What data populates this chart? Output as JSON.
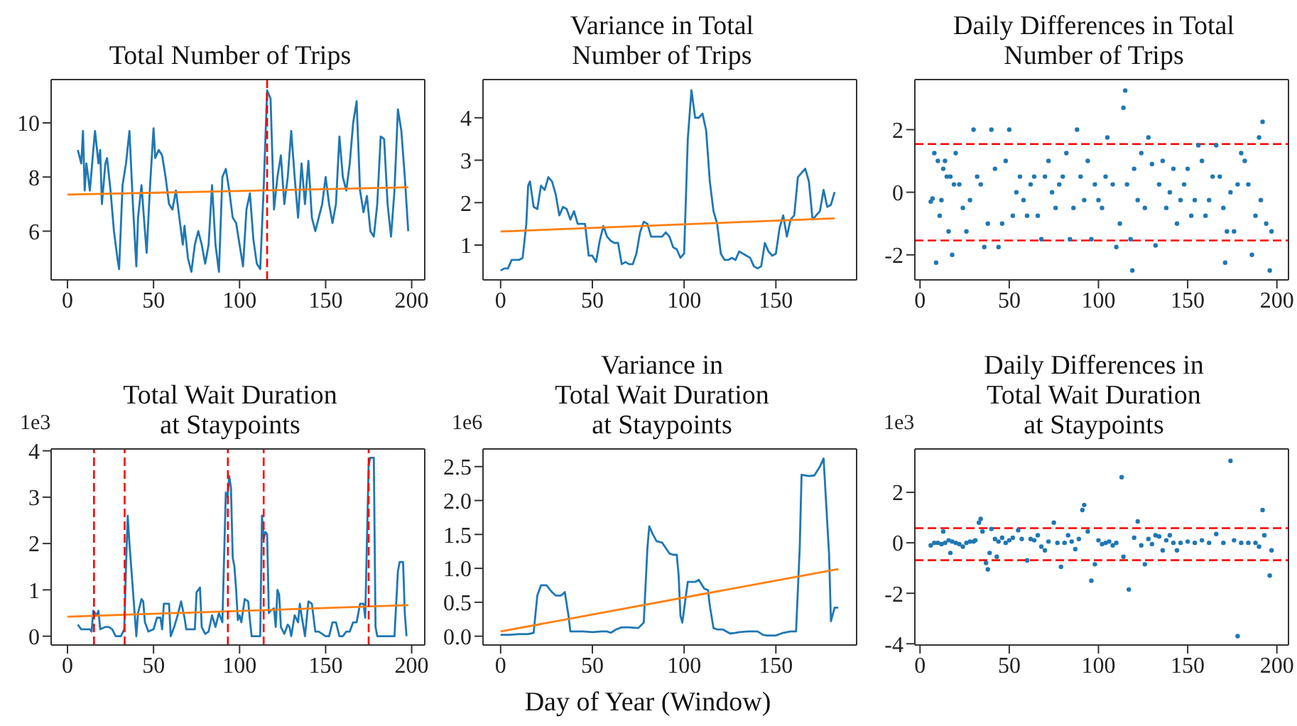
{
  "chart_data": [
    {
      "type": "line",
      "title": "Total Number of Trips",
      "xlim": [
        -9.5,
        207.6
      ],
      "ylim": [
        4.2,
        11.6
      ],
      "xticks": [
        0,
        50,
        100,
        150,
        200
      ],
      "yticks": [
        6,
        8,
        10
      ],
      "series": [
        {
          "color": "#1f77b4",
          "x": [
            6,
            8,
            9,
            10,
            11,
            13,
            15,
            16,
            18,
            19,
            20,
            22,
            23,
            25,
            27,
            29,
            30,
            32,
            34,
            36,
            38,
            40,
            41,
            43,
            45,
            46,
            48,
            50,
            51,
            53,
            55,
            57,
            59,
            61,
            63,
            65,
            67,
            68,
            70,
            72,
            74,
            76,
            78,
            80,
            82,
            84,
            86,
            88,
            90,
            92,
            94,
            96,
            98,
            100,
            102,
            104,
            106,
            108,
            110,
            112,
            114,
            116,
            118,
            120,
            122,
            124,
            126,
            128,
            130,
            132,
            134,
            136,
            138,
            140,
            142,
            144,
            146,
            148,
            150,
            152,
            154,
            156,
            158,
            160,
            162,
            164,
            166,
            168,
            170,
            172,
            174,
            176,
            178,
            180,
            182,
            184,
            186,
            188,
            190,
            192,
            194,
            196,
            198
          ],
          "values": [
            9.0,
            8.5,
            9.7,
            7.5,
            8.5,
            7.5,
            9.0,
            9.7,
            8.5,
            9.0,
            7.0,
            8.5,
            8.7,
            7.5,
            6.0,
            5.0,
            4.6,
            7.7,
            8.5,
            9.7,
            7.0,
            4.7,
            6.5,
            7.7,
            6.0,
            5.2,
            7.7,
            9.8,
            8.7,
            9.0,
            8.8,
            8.0,
            7.0,
            6.8,
            7.5,
            6.5,
            5.5,
            6.2,
            5.0,
            4.5,
            5.5,
            6.0,
            5.5,
            4.8,
            5.5,
            7.7,
            5.5,
            4.5,
            8.0,
            8.3,
            7.5,
            6.5,
            6.3,
            5.5,
            4.7,
            6.8,
            7.4,
            5.7,
            4.8,
            4.6,
            7.6,
            11.2,
            10.9,
            6.8,
            8.0,
            8.8,
            7.0,
            8.0,
            9.7,
            8.0,
            6.5,
            8.5,
            7.0,
            8.6,
            6.5,
            6.0,
            6.5,
            7.0,
            8.0,
            7.0,
            6.3,
            7.0,
            9.5,
            8.0,
            7.5,
            8.5,
            10.0,
            10.8,
            7.5,
            6.7,
            7.3,
            6.0,
            5.8,
            7.0,
            9.5,
            9.4,
            7.0,
            5.8,
            7.5,
            10.5,
            9.7,
            8.0,
            6.0
          ]
        },
        {
          "type": "line",
          "color": "#ff7f0e",
          "x": [
            0,
            198
          ],
          "values": [
            7.35,
            7.62
          ]
        }
      ],
      "ref_lines": [
        {
          "axis": "x",
          "value": 116,
          "color": "#ff0000",
          "line_style": "dashed"
        }
      ]
    },
    {
      "type": "line",
      "title": "Variance in Total\nNumber of Trips",
      "xlim": [
        -9.6,
        194
      ],
      "ylim": [
        0.18,
        4.9
      ],
      "xticks": [
        0,
        50,
        100,
        150
      ],
      "yticks": [
        1,
        2,
        3,
        4
      ],
      "series": [
        {
          "color": "#1f77b4",
          "x": [
            0,
            2,
            4,
            6,
            10,
            12,
            14,
            15,
            16,
            18,
            20,
            22,
            24,
            26,
            28,
            30,
            32,
            34,
            36,
            38,
            40,
            42,
            44,
            46,
            48,
            50,
            52,
            54,
            56,
            58,
            60,
            62,
            64,
            66,
            68,
            70,
            72,
            74,
            76,
            78,
            80,
            82,
            84,
            86,
            88,
            90,
            92,
            94,
            96,
            98,
            100,
            102,
            104,
            106,
            108,
            110,
            112,
            114,
            116,
            118,
            120,
            122,
            124,
            126,
            128,
            130,
            132,
            134,
            136,
            138,
            140,
            142,
            144,
            146,
            148,
            150,
            152,
            154,
            156,
            158,
            160,
            162,
            164,
            166,
            168,
            170,
            172,
            174,
            176,
            178,
            180,
            182
          ],
          "values": [
            0.4,
            0.45,
            0.45,
            0.65,
            0.65,
            0.7,
            1.5,
            2.4,
            2.5,
            1.9,
            1.85,
            2.4,
            2.3,
            2.6,
            2.5,
            2.2,
            1.7,
            1.9,
            1.85,
            1.6,
            1.8,
            1.5,
            1.5,
            1.5,
            0.75,
            0.75,
            0.6,
            1.1,
            1.45,
            1.2,
            1.1,
            1.05,
            1.05,
            0.55,
            0.6,
            0.55,
            0.55,
            0.8,
            1.3,
            1.55,
            1.5,
            1.2,
            1.2,
            1.2,
            1.2,
            1.3,
            1.2,
            0.95,
            0.9,
            0.7,
            0.8,
            3.5,
            4.65,
            4.0,
            4.0,
            4.1,
            3.7,
            2.5,
            1.8,
            1.5,
            0.8,
            0.65,
            0.65,
            0.7,
            0.65,
            0.85,
            0.8,
            0.75,
            0.7,
            0.5,
            0.45,
            0.5,
            1.05,
            0.85,
            0.75,
            0.8,
            1.4,
            1.7,
            1.2,
            1.6,
            1.7,
            2.6,
            2.7,
            2.8,
            2.5,
            1.6,
            1.7,
            1.8,
            2.3,
            1.9,
            1.95,
            2.25
          ]
        },
        {
          "type": "line",
          "color": "#ff7f0e",
          "x": [
            0,
            182
          ],
          "values": [
            1.32,
            1.63
          ]
        }
      ]
    },
    {
      "type": "scatter",
      "title": "Daily Differences in Total\nNumber of Trips",
      "xlim": [
        -2.9,
        206.5
      ],
      "ylim": [
        -2.8,
        3.6
      ],
      "xticks": [
        0,
        50,
        100,
        150,
        200
      ],
      "yticks": [
        -2,
        0,
        2
      ],
      "marker": "circle",
      "series": [
        {
          "color": "#1f77b4",
          "x": [
            6,
            7,
            8,
            9,
            10,
            11,
            12,
            13,
            14,
            15,
            16,
            17,
            18,
            19,
            20,
            22,
            24,
            26,
            28,
            30,
            32,
            34,
            36,
            38,
            40,
            42,
            44,
            46,
            48,
            50,
            52,
            54,
            56,
            58,
            60,
            62,
            64,
            66,
            68,
            70,
            72,
            74,
            76,
            78,
            80,
            82,
            84,
            86,
            88,
            90,
            92,
            94,
            96,
            98,
            100,
            102,
            104,
            105,
            108,
            110,
            112,
            114,
            115,
            116,
            118,
            119,
            120,
            122,
            124,
            126,
            128,
            130,
            132,
            134,
            136,
            138,
            140,
            142,
            144,
            146,
            148,
            150,
            152,
            154,
            156,
            158,
            160,
            162,
            164,
            166,
            168,
            170,
            171,
            172,
            174,
            176,
            178,
            180,
            182,
            184,
            186,
            188,
            190,
            191,
            192,
            194,
            196,
            197
          ],
          "values": [
            -0.3,
            -0.2,
            1.25,
            -2.25,
            1.0,
            -0.75,
            -0.25,
            0.75,
            1.0,
            0.5,
            -1.25,
            0.5,
            -2.0,
            0.25,
            1.25,
            0.25,
            -0.5,
            -1.25,
            -0.25,
            2.0,
            0.5,
            0.25,
            -1.75,
            -1.0,
            2.0,
            0.75,
            -1.75,
            -1.0,
            1.0,
            2.0,
            -0.75,
            0.0,
            0.5,
            -0.25,
            -0.75,
            0.25,
            0.5,
            -0.75,
            -1.5,
            0.5,
            1.0,
            0.0,
            -0.5,
            0.25,
            0.5,
            1.25,
            -1.5,
            -0.5,
            2.0,
            0.5,
            -0.25,
            1.0,
            -1.5,
            0.25,
            -0.25,
            -0.5,
            0.5,
            1.75,
            0.25,
            -1.75,
            -1.0,
            2.7,
            3.25,
            0.25,
            -1.5,
            -2.5,
            0.75,
            -0.25,
            1.25,
            -0.5,
            1.75,
            0.9,
            -1.7,
            0.25,
            1.0,
            -0.5,
            0.0,
            0.75,
            -1.0,
            -0.25,
            0.25,
            0.75,
            -0.75,
            -0.25,
            1.5,
            1.0,
            -0.75,
            -0.25,
            0.5,
            1.5,
            0.5,
            -0.5,
            -2.25,
            -1.25,
            0.0,
            -1.25,
            0.25,
            1.25,
            1.0,
            0.25,
            -2.0,
            -0.75,
            1.75,
            -0.25,
            2.25,
            -1.0,
            -2.5,
            -1.25
          ]
        }
      ],
      "ref_lines": [
        {
          "axis": "y",
          "value": 1.54,
          "color": "#ff0000",
          "line_style": "dashed"
        },
        {
          "axis": "y",
          "value": -1.54,
          "color": "#ff0000",
          "line_style": "dashed"
        }
      ]
    },
    {
      "type": "line",
      "title": "Total Wait Duration\nat Staypoints",
      "annotations": [
        "1e3"
      ],
      "xlim": [
        -9.5,
        207.6
      ],
      "ylim": [
        -0.19,
        4.04
      ],
      "xticks": [
        0,
        50,
        100,
        150,
        200
      ],
      "yticks": [
        0,
        1,
        2,
        3,
        4
      ],
      "series": [
        {
          "color": "#1f77b4",
          "x": [
            6,
            8,
            10,
            13,
            14,
            15,
            17,
            18,
            19,
            22,
            24,
            26,
            28,
            31,
            33,
            34,
            35,
            36,
            37,
            39,
            40,
            41,
            43,
            44,
            45,
            47,
            50,
            52,
            54,
            55,
            56,
            59,
            60,
            62,
            64,
            66,
            68,
            69,
            72,
            74,
            75,
            77,
            78,
            80,
            82,
            84,
            86,
            88,
            90,
            92,
            93,
            94,
            95,
            96,
            97,
            98,
            99,
            100,
            101,
            103,
            105,
            106,
            107,
            110,
            112,
            113,
            114,
            115,
            116,
            117,
            118,
            120,
            121,
            122,
            123,
            124,
            126,
            128,
            129,
            130,
            132,
            134,
            135,
            136,
            138,
            140,
            142,
            144,
            146,
            150,
            152,
            154,
            156,
            158,
            160,
            162,
            164,
            166,
            168,
            170,
            172,
            173,
            175,
            176,
            178,
            179,
            180,
            190,
            192,
            193,
            195,
            196,
            197
          ],
          "values": [
            0.25,
            0.15,
            0.15,
            0.15,
            0.1,
            0.55,
            0.45,
            0.55,
            0.15,
            0.2,
            0.2,
            0.15,
            0,
            0,
            0.15,
            1.5,
            2.6,
            2.0,
            1.5,
            0.5,
            0,
            0.5,
            0.8,
            0.75,
            0.3,
            0.1,
            0.15,
            0.4,
            0.4,
            0.15,
            0.7,
            0.7,
            0,
            0.2,
            0.45,
            0.75,
            0.4,
            0.15,
            0.15,
            0.15,
            0.95,
            1.05,
            0.2,
            0.05,
            0.1,
            0.45,
            0.2,
            0.5,
            0.3,
            3.1,
            3.0,
            3.45,
            3.2,
            1.7,
            1.5,
            1.0,
            0.35,
            0.45,
            0.3,
            0.8,
            0.75,
            0.35,
            0,
            0,
            0,
            2.6,
            2.1,
            2.25,
            2.2,
            0.5,
            0.55,
            0.6,
            0.2,
            1.0,
            0.9,
            0.2,
            0.05,
            0.25,
            0.2,
            0,
            0.45,
            0.3,
            0.7,
            0.45,
            0,
            0.75,
            0.7,
            0.1,
            0.1,
            0,
            0,
            0.3,
            0.3,
            0,
            0,
            0.1,
            0.1,
            0.3,
            0.3,
            0.7,
            0.7,
            0.4,
            3.7,
            3.85,
            3.85,
            0.2,
            0,
            0,
            1.4,
            1.6,
            1.6,
            0.5,
            0
          ]
        },
        {
          "type": "line",
          "color": "#ff7f0e",
          "x": [
            0,
            198
          ],
          "values": [
            0.42,
            0.67
          ]
        }
      ],
      "ref_lines": [
        {
          "axis": "x",
          "value": 15.4,
          "color": "#ff0000",
          "line_style": "dashed"
        },
        {
          "axis": "x",
          "value": 33.2,
          "color": "#ff0000",
          "line_style": "dashed"
        },
        {
          "axis": "x",
          "value": 93.2,
          "color": "#ff0000",
          "line_style": "dashed"
        },
        {
          "axis": "x",
          "value": 114,
          "color": "#ff0000",
          "line_style": "dashed"
        },
        {
          "axis": "x",
          "value": 175,
          "color": "#ff0000",
          "line_style": "dashed"
        }
      ]
    },
    {
      "type": "line",
      "title": "Variance in\nTotal Wait Duration\nat Staypoints",
      "xlabel": "Day of Year (Window)",
      "annotations": [
        "1e6"
      ],
      "xlim": [
        -9.6,
        194
      ],
      "ylim": [
        -0.13,
        2.76
      ],
      "xticks": [
        0,
        50,
        100,
        150
      ],
      "yticks": [
        {
          "value": 0,
          "label": "0.0"
        },
        {
          "value": 0.5,
          "label": "0.5"
        },
        {
          "value": 1,
          "label": "1.0"
        },
        {
          "value": 1.5,
          "label": "1.5"
        },
        {
          "value": 2,
          "label": "2.0"
        },
        {
          "value": 2.5,
          "label": "2.5"
        }
      ],
      "series": [
        {
          "color": "#1f77b4",
          "x": [
            0,
            5,
            10,
            15,
            18,
            20,
            22,
            25,
            28,
            30,
            33,
            35,
            37,
            38,
            42,
            45,
            50,
            55,
            58,
            60,
            63,
            66,
            70,
            75,
            78,
            80,
            81,
            83,
            85,
            88,
            90,
            92,
            94,
            96,
            97,
            98,
            99,
            101,
            102,
            106,
            108,
            111,
            113,
            114,
            116,
            118,
            121,
            125,
            128,
            130,
            135,
            140,
            143,
            145,
            150,
            154,
            158,
            161,
            163,
            164,
            168,
            171,
            174,
            176,
            179,
            180,
            182,
            184
          ],
          "values": [
            0.02,
            0.02,
            0.03,
            0.03,
            0.05,
            0.6,
            0.75,
            0.75,
            0.65,
            0.6,
            0.6,
            0.65,
            0.3,
            0.07,
            0.07,
            0.07,
            0.06,
            0.07,
            0.07,
            0.05,
            0.1,
            0.13,
            0.13,
            0.12,
            0.2,
            1.3,
            1.62,
            1.5,
            1.4,
            1.38,
            1.3,
            1.22,
            1.2,
            1.2,
            0.9,
            0.3,
            0.2,
            0.6,
            0.8,
            0.8,
            0.83,
            0.7,
            0.68,
            0.45,
            0.12,
            0.1,
            0.1,
            0.04,
            0.05,
            0.06,
            0.07,
            0.07,
            0.02,
            0.01,
            0.01,
            0.05,
            0.07,
            0.07,
            1.3,
            2.38,
            2.36,
            2.37,
            2.5,
            2.62,
            1.2,
            0.22,
            0.42,
            0.42
          ]
        },
        {
          "type": "line",
          "color": "#ff7f0e",
          "x": [
            0,
            184
          ],
          "values": [
            0.07,
            0.99
          ]
        }
      ]
    },
    {
      "type": "scatter",
      "title": "Daily Differences in\nTotal Wait Duration\nat Staypoints",
      "annotations": [
        "1e3"
      ],
      "xlim": [
        -2.9,
        206.5
      ],
      "ylim": [
        -4.05,
        3.72
      ],
      "xticks": [
        0,
        50,
        100,
        150,
        200
      ],
      "yticks": [
        -4,
        -2,
        0,
        2
      ],
      "marker": "circle",
      "series": [
        {
          "color": "#1f77b4",
          "x": [
            6,
            8,
            10,
            12,
            13,
            14,
            16,
            17,
            18,
            20,
            22,
            24,
            26,
            28,
            30,
            31,
            33,
            34,
            35,
            37,
            38,
            39,
            40,
            42,
            43,
            44,
            46,
            48,
            50,
            52,
            55,
            57,
            60,
            62,
            64,
            66,
            68,
            70,
            72,
            75,
            77,
            79,
            81,
            83,
            85,
            87,
            89,
            91,
            92,
            94,
            96,
            98,
            100,
            102,
            104,
            106,
            108,
            110,
            113,
            114,
            117,
            120,
            122,
            124,
            126,
            128,
            130,
            132,
            134,
            136,
            138,
            140,
            142,
            144,
            146,
            150,
            154,
            158,
            162,
            166,
            170,
            174,
            176,
            178,
            180,
            184,
            188,
            190,
            192,
            193,
            196,
            197
          ],
          "values": [
            -0.1,
            0,
            0,
            -0.05,
            0.45,
            0,
            0.1,
            -0.4,
            0.05,
            0,
            -0.05,
            -0.15,
            0,
            0.05,
            0.05,
            0.1,
            0.8,
            0.95,
            0.45,
            -0.8,
            -1.05,
            -0.4,
            0.55,
            0.15,
            -0.55,
            0.05,
            0.2,
            0,
            0.1,
            0.2,
            0.5,
            0.15,
            -0.7,
            0.15,
            0.1,
            0.3,
            -0.15,
            -0.3,
            0.05,
            0.8,
            0,
            -0.95,
            0,
            0.3,
            0.05,
            -0.25,
            0.15,
            1.3,
            1.5,
            0.45,
            -1.5,
            -0.85,
            0.1,
            -0.05,
            0,
            0.05,
            -0.1,
            0,
            2.6,
            -0.55,
            -1.85,
            0.2,
            0.85,
            -0.1,
            -0.85,
            0.15,
            -0.05,
            0.3,
            0.25,
            -0.3,
            0.1,
            0.3,
            0,
            -0.3,
            0,
            0.05,
            0,
            0.1,
            0,
            0.35,
            0,
            3.25,
            0.1,
            -3.7,
            0,
            0,
            0,
            -0.15,
            1.3,
            0.3,
            -1.3,
            -0.3
          ]
        }
      ],
      "ref_lines": [
        {
          "axis": "y",
          "value": 0.58,
          "color": "#ff0000",
          "line_style": "dashed"
        },
        {
          "axis": "y",
          "value": -0.69,
          "color": "#ff0000",
          "line_style": "dashed"
        }
      ]
    }
  ]
}
